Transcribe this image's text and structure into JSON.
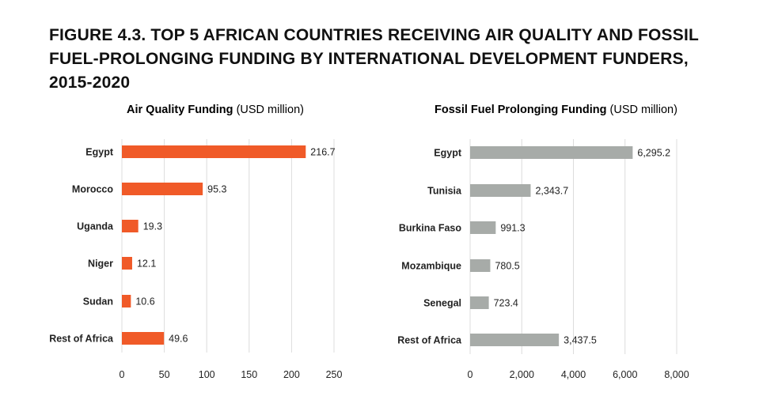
{
  "figure_title": "FIGURE 4.3.  TOP 5 AFRICAN COUNTRIES RECEIVING AIR QUALITY AND FOSSIL FUEL-PROLONGING FUNDING BY INTERNATIONAL DEVELOPMENT FUNDERS, 2015-2020",
  "colors": {
    "air_quality": "#f05a28",
    "fossil_fuel": "#a7aba8",
    "grid": "#dcdcdc",
    "text": "#222222"
  },
  "chart_data": [
    {
      "type": "bar",
      "orientation": "horizontal",
      "title": "Air Quality Funding",
      "unit": "(USD million)",
      "categories": [
        "Egypt",
        "Morocco",
        "Uganda",
        "Niger",
        "Sudan",
        "Rest of Africa"
      ],
      "values": [
        216.7,
        95.3,
        19.3,
        12.1,
        10.6,
        49.6
      ],
      "value_labels": [
        "216.7",
        "95.3",
        "19.3",
        "12.1",
        "10.6",
        "49.6"
      ],
      "xlim": [
        0,
        250
      ],
      "xticks": [
        0,
        50,
        100,
        150,
        200,
        250
      ],
      "xtick_labels": [
        "0",
        "50",
        "100",
        "150",
        "200",
        "250"
      ],
      "grid": true
    },
    {
      "type": "bar",
      "orientation": "horizontal",
      "title": "Fossil Fuel Prolonging Funding",
      "unit": "(USD million)",
      "categories": [
        "Egypt",
        "Tunisia",
        "Burkina Faso",
        "Mozambique",
        "Senegal",
        "Rest of Africa"
      ],
      "values": [
        6295.2,
        2343.7,
        991.3,
        780.5,
        723.4,
        3437.5
      ],
      "value_labels": [
        "6,295.2",
        "2,343.7",
        "991.3",
        "780.5",
        "723.4",
        "3,437.5"
      ],
      "xlim": [
        0,
        8000
      ],
      "xticks": [
        0,
        2000,
        4000,
        6000,
        8000
      ],
      "xtick_labels": [
        "0",
        "2,000",
        "4,000",
        "6,000",
        "8,000"
      ],
      "grid": true
    }
  ]
}
